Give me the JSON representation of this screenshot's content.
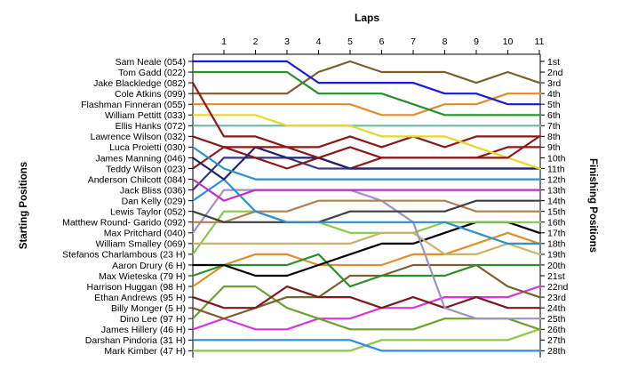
{
  "chart_data": {
    "type": "line",
    "title": "Laps",
    "left_axis_title": "Starting Positions",
    "right_axis_title": "Finishing Positions",
    "x": [
      1,
      2,
      3,
      4,
      5,
      6,
      7,
      8,
      9,
      10,
      11
    ],
    "x_tick_labels": [
      "1",
      "2",
      "3",
      "4",
      "5",
      "6",
      "7",
      "8",
      "9",
      "10",
      "11"
    ],
    "finish_labels": [
      "1st",
      "2nd",
      "3rd",
      "4th",
      "5th",
      "6th",
      "7th",
      "8th",
      "9th",
      "10th",
      "11th",
      "12th",
      "13th",
      "14th",
      "15th",
      "16th",
      "17th",
      "18th",
      "19th",
      "20th",
      "21st",
      "22nd",
      "23rd",
      "24th",
      "25th",
      "26th",
      "27th",
      "28th"
    ],
    "ylim": [
      1,
      28
    ],
    "y_inverted": true,
    "grid": false,
    "legend": "none",
    "series": [
      {
        "name": "Sam Neale (054)",
        "color": "#1a1adc",
        "values": [
          1,
          1,
          1,
          3,
          3,
          3,
          3,
          4,
          4,
          5,
          5
        ]
      },
      {
        "name": "Tom Gadd (022)",
        "color": "#2a8f2a",
        "values": [
          2,
          2,
          2,
          4,
          4,
          4,
          5,
          6,
          6,
          6,
          6
        ]
      },
      {
        "name": "Jake Blackledge (082)",
        "color": "#8c1a1a",
        "values": [
          8,
          8,
          9,
          10,
          9,
          10,
          10,
          10,
          10,
          10,
          8
        ]
      },
      {
        "name": "Cole Atkins (099)",
        "color": "#7a6030",
        "values": [
          4,
          4,
          4,
          2,
          1,
          2,
          2,
          2,
          3,
          2,
          3
        ]
      },
      {
        "name": "Flashman Finneran (055)",
        "color": "#e08e2a",
        "values": [
          5,
          5,
          5,
          5,
          5,
          6,
          6,
          5,
          5,
          4,
          4
        ]
      },
      {
        "name": "William Pettitt (033)",
        "color": "#e6d82a",
        "values": [
          6,
          6,
          7,
          7,
          7,
          8,
          8,
          8,
          9,
          10,
          11
        ]
      },
      {
        "name": "Ellis Hanks (072)",
        "color": "#6fb8a8",
        "values": [
          7,
          7,
          7,
          7,
          7,
          7,
          7,
          7,
          7,
          7,
          7
        ]
      },
      {
        "name": "Lawrence Wilson (032)",
        "color": "#8a1a1a",
        "values": [
          9,
          9,
          9,
          9,
          8,
          9,
          8,
          9,
          8,
          8,
          8
        ]
      },
      {
        "name": "Luca Proietti (030)",
        "color": "#2d8fd6",
        "values": [
          11,
          12,
          12,
          12,
          12,
          12,
          12,
          12,
          12,
          12,
          12
        ]
      },
      {
        "name": "James Manning (046)",
        "color": "#23236b",
        "values": [
          12,
          9,
          10,
          10,
          11,
          11,
          11,
          11,
          11,
          11,
          11
        ]
      },
      {
        "name": "Teddy Wilson (023)",
        "color": "#8a1a1a",
        "values": [
          9,
          10,
          11,
          10,
          11,
          10,
          10,
          10,
          10,
          9,
          9
        ]
      },
      {
        "name": "Anderson Chilcott (084)",
        "color": "#c030c0",
        "values": [
          14,
          13,
          13,
          13,
          13,
          13,
          13,
          13,
          13,
          13,
          13
        ]
      },
      {
        "name": "Jack Bliss (036)",
        "color": "#3a3a7a",
        "values": [
          10,
          10,
          10,
          11,
          11,
          11,
          11,
          11,
          11,
          11,
          11
        ]
      },
      {
        "name": "Dan Kelly (029)",
        "color": "#2d8fd6",
        "values": [
          12,
          15,
          16,
          16,
          16,
          16,
          16,
          16,
          17,
          18,
          18
        ]
      },
      {
        "name": "Lewis Taylor (052)",
        "color": "#404040",
        "values": [
          16,
          16,
          16,
          16,
          15,
          15,
          15,
          15,
          14,
          14,
          14
        ]
      },
      {
        "name": "Matthew Round- Garido (092)",
        "color": "#b08050",
        "values": [
          16,
          15,
          15,
          14,
          14,
          14,
          14,
          14,
          15,
          15,
          15
        ]
      },
      {
        "name": "Max Pritchard (040)",
        "color": "#a090c8",
        "values": [
          13,
          13,
          13,
          13,
          13,
          14,
          16,
          24,
          25,
          25,
          25
        ]
      },
      {
        "name": "William Smalley (069)",
        "color": "#c8b46a",
        "values": [
          18,
          18,
          18,
          18,
          18,
          17,
          17,
          19,
          19,
          18,
          19
        ]
      },
      {
        "name": "Stefanos Charlambous (23 H)",
        "color": "#8ac84a",
        "values": [
          15,
          15,
          16,
          16,
          17,
          17,
          17,
          16,
          16,
          16,
          16
        ]
      },
      {
        "name": "Aaron Drury (6 H)",
        "color": "#000000",
        "values": [
          20,
          21,
          21,
          20,
          19,
          18,
          18,
          17,
          16,
          16,
          17
        ]
      },
      {
        "name": "Max Wieteska (79 H)",
        "color": "#2a8f2a",
        "values": [
          20,
          20,
          20,
          19,
          22,
          21,
          21,
          21,
          20,
          20,
          20
        ]
      },
      {
        "name": "Harrison Huggan (98 H)",
        "color": "#e08e2a",
        "values": [
          20,
          19,
          19,
          20,
          20,
          20,
          19,
          19,
          18,
          17,
          18
        ]
      },
      {
        "name": "Ethan Andrews (95 H)",
        "color": "#7a1a1a",
        "values": [
          24,
          24,
          22,
          23,
          23,
          24,
          23,
          24,
          23,
          24,
          24
        ]
      },
      {
        "name": "Billy Monger (5 H)",
        "color": "#7a6030",
        "values": [
          25,
          24,
          23,
          23,
          21,
          21,
          20,
          20,
          20,
          22,
          23
        ]
      },
      {
        "name": "Dino Lee (97 H)",
        "color": "#6fa030",
        "values": [
          22,
          22,
          24,
          25,
          26,
          26,
          26,
          25,
          25,
          25,
          26
        ]
      },
      {
        "name": "James Hillery (46 H)",
        "color": "#d838d8",
        "values": [
          25,
          26,
          26,
          25,
          25,
          24,
          24,
          23,
          23,
          23,
          22
        ]
      },
      {
        "name": "Darshan Pindoria (31 H)",
        "color": "#2d8fd6",
        "values": [
          27,
          27,
          27,
          27,
          27,
          28,
          28,
          28,
          28,
          28,
          28
        ]
      },
      {
        "name": "Mark Kimber (47 H)",
        "color": "#8ac84a",
        "values": [
          28,
          28,
          28,
          28,
          28,
          27,
          27,
          27,
          27,
          27,
          26
        ]
      }
    ]
  }
}
